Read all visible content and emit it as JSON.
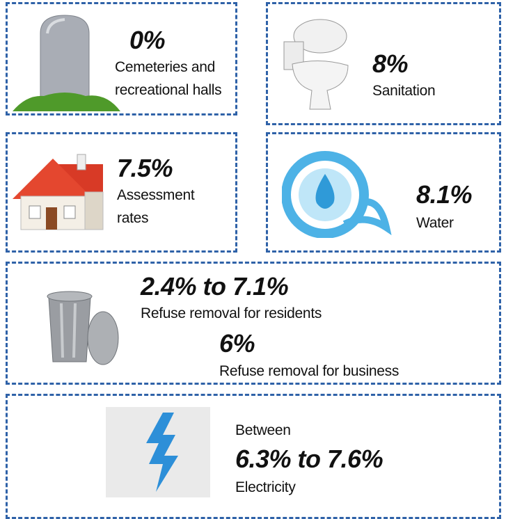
{
  "cards": [
    {
      "value": "0%",
      "label_lines": [
        "Cemeteries and",
        "recreational halls"
      ]
    },
    {
      "value": "8%",
      "label_lines": [
        "Sanitation"
      ]
    },
    {
      "value": "7.5%",
      "label_lines": [
        "Assessment",
        "rates"
      ]
    },
    {
      "value": "8.1%",
      "label_lines": [
        "Water"
      ]
    },
    {
      "items": [
        {
          "value": "2.4% to 7.1%",
          "label": "Refuse removal for residents"
        },
        {
          "value": "6%",
          "label": "Refuse removal for business"
        }
      ]
    },
    {
      "prefix": "Between",
      "value": "6.3% to 7.6%",
      "label": "Electricity"
    }
  ]
}
